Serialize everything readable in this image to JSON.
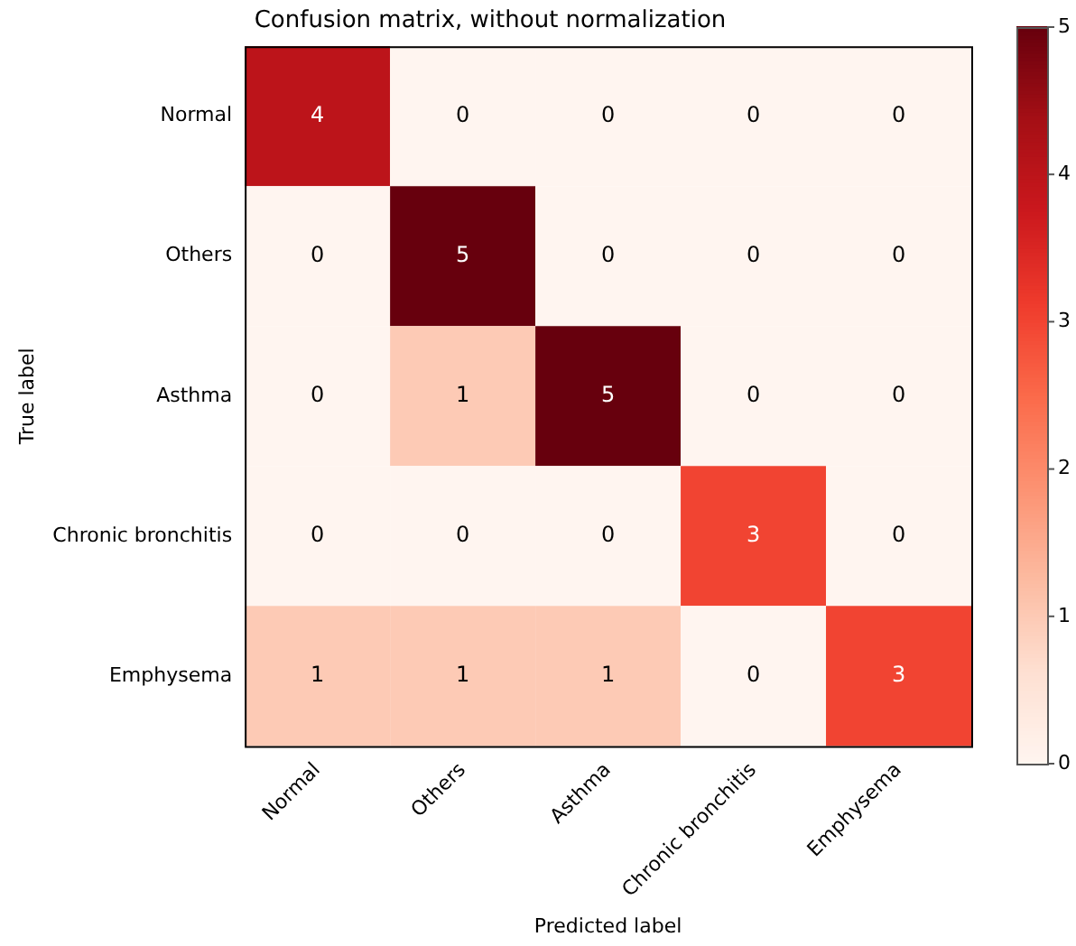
{
  "chart_data": {
    "type": "heatmap",
    "title": "Confusion matrix, without normalization",
    "xlabel": "Predicted label",
    "ylabel": "True label",
    "categories": [
      "Normal",
      "Others",
      "Asthma",
      "Chronic bronchitis",
      "Emphysema"
    ],
    "y_categories": [
      "Normal",
      "Others",
      "Asthma",
      "Chronic bronchitis",
      "Emphysema"
    ],
    "cells": [
      [
        4,
        0,
        0,
        0,
        0
      ],
      [
        0,
        5,
        0,
        0,
        0
      ],
      [
        0,
        1,
        5,
        0,
        0
      ],
      [
        0,
        0,
        0,
        3,
        0
      ],
      [
        1,
        1,
        1,
        0,
        3
      ]
    ],
    "clim": [
      0,
      5
    ],
    "cticks": [
      0,
      1,
      2,
      3,
      4,
      5
    ],
    "data_labels": true
  }
}
